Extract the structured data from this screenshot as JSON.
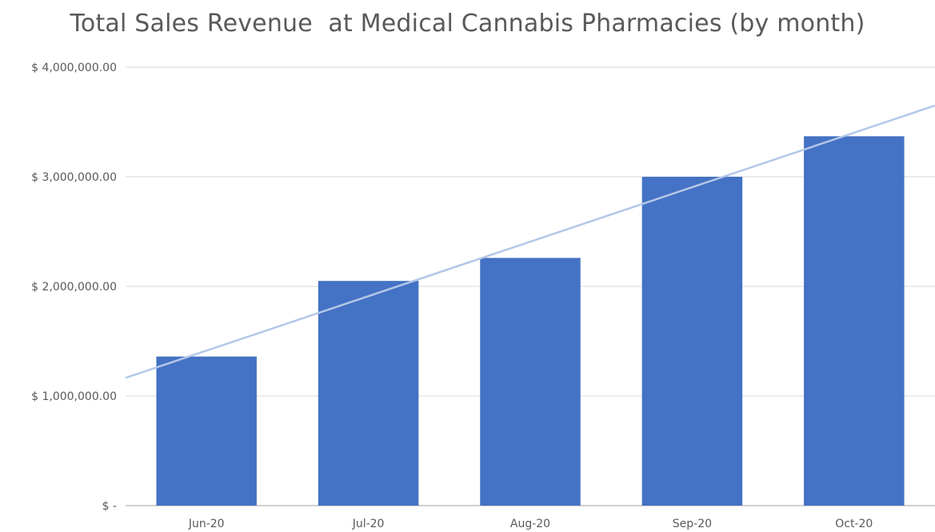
{
  "chart_data": {
    "type": "bar",
    "title": "Total Sales Revenue  at Medical Cannabis Pharmacies (by month)",
    "xlabel": "",
    "ylabel": "",
    "categories": [
      "Jun-20",
      "Jul-20",
      "Aug-20",
      "Sep-20",
      "Oct-20"
    ],
    "values": [
      1360000,
      2050000,
      2260000,
      3000000,
      3370000
    ],
    "ylim": [
      0,
      4000000
    ],
    "y_ticks": [
      0,
      1000000,
      2000000,
      3000000,
      4000000
    ],
    "y_tick_labels": [
      "$ -",
      "$ 1,000,000.00",
      "$ 2,000,000.00",
      "$ 3,000,000.00",
      "$ 4,000,000.00"
    ],
    "grid": true,
    "trendline": {
      "type": "linear"
    },
    "colors": {
      "bar": "#4472C4",
      "trendline": "#B4C7E7",
      "grid": "#D9D9D9",
      "axis": "#BFBFBF",
      "text": "#595959"
    }
  }
}
